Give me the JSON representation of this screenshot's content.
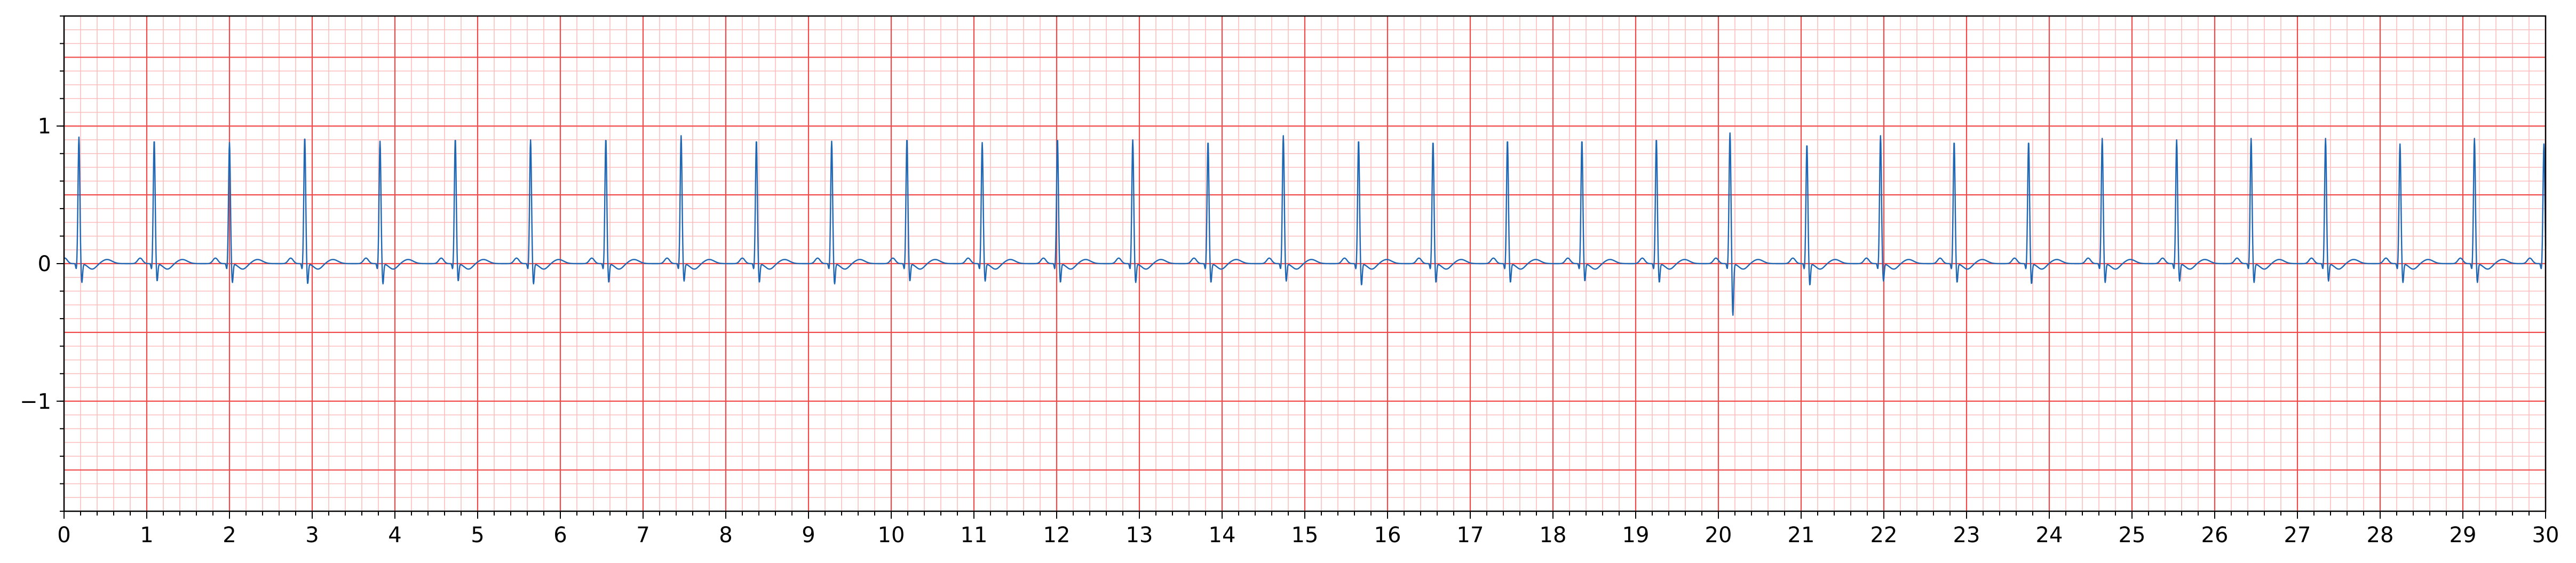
{
  "chart_data": {
    "type": "line",
    "title": "",
    "xlabel": "",
    "ylabel": "",
    "xlim": [
      0,
      30
    ],
    "ylim": [
      -1.8,
      1.8
    ],
    "x_ticks": [
      "0",
      "1",
      "2",
      "3",
      "4",
      "5",
      "6",
      "7",
      "8",
      "9",
      "10",
      "11",
      "12",
      "13",
      "14",
      "15",
      "16",
      "17",
      "18",
      "19",
      "20",
      "21",
      "22",
      "23",
      "24",
      "25",
      "26",
      "27",
      "28",
      "29",
      "30"
    ],
    "y_ticks": [
      {
        "value": 1,
        "label": "1"
      },
      {
        "value": 0,
        "label": "0"
      },
      {
        "value": -1,
        "label": "−1"
      }
    ],
    "grid": {
      "major_x_step": 1,
      "major_y_step": 0.5,
      "minor_x_step": 0.2,
      "minor_y_step": 0.1,
      "major_color": "#f04a4a",
      "minor_color": "#fbbcbc"
    },
    "series": [
      {
        "color": "#1f66b3",
        "baseline": 0.0,
        "beats": [
          {
            "t": 0.18,
            "r": 0.92,
            "s": -0.14
          },
          {
            "t": 1.09,
            "r": 0.9,
            "s": -0.13
          },
          {
            "t": 2.0,
            "r": 0.88,
            "s": -0.14
          },
          {
            "t": 2.91,
            "r": 0.92,
            "s": -0.15
          },
          {
            "t": 3.82,
            "r": 0.89,
            "s": -0.15
          },
          {
            "t": 4.73,
            "r": 0.91,
            "s": -0.13
          },
          {
            "t": 5.64,
            "r": 0.9,
            "s": -0.15
          },
          {
            "t": 6.55,
            "r": 0.91,
            "s": -0.14
          },
          {
            "t": 7.46,
            "r": 0.93,
            "s": -0.13
          },
          {
            "t": 8.37,
            "r": 0.9,
            "s": -0.14
          },
          {
            "t": 9.28,
            "r": 0.89,
            "s": -0.15
          },
          {
            "t": 10.19,
            "r": 0.91,
            "s": -0.13
          },
          {
            "t": 11.1,
            "r": 0.88,
            "s": -0.13
          },
          {
            "t": 12.01,
            "r": 0.91,
            "s": -0.14
          },
          {
            "t": 12.92,
            "r": 0.9,
            "s": -0.14
          },
          {
            "t": 13.83,
            "r": 0.89,
            "s": -0.14
          },
          {
            "t": 14.74,
            "r": 0.93,
            "s": -0.13
          },
          {
            "t": 15.65,
            "r": 0.9,
            "s": -0.16
          },
          {
            "t": 16.55,
            "r": 0.89,
            "s": -0.14
          },
          {
            "t": 17.45,
            "r": 0.9,
            "s": -0.14
          },
          {
            "t": 18.35,
            "r": 0.9,
            "s": -0.13
          },
          {
            "t": 19.25,
            "r": 0.91,
            "s": -0.14
          },
          {
            "t": 20.14,
            "r": 0.95,
            "s": -0.38
          },
          {
            "t": 21.07,
            "r": 0.87,
            "s": -0.16
          },
          {
            "t": 21.96,
            "r": 0.93,
            "s": -0.13
          },
          {
            "t": 22.85,
            "r": 0.89,
            "s": -0.14
          },
          {
            "t": 23.75,
            "r": 0.89,
            "s": -0.15
          },
          {
            "t": 24.64,
            "r": 0.91,
            "s": -0.14
          },
          {
            "t": 25.54,
            "r": 0.9,
            "s": -0.13
          },
          {
            "t": 26.44,
            "r": 0.91,
            "s": -0.14
          },
          {
            "t": 27.34,
            "r": 0.91,
            "s": -0.13
          },
          {
            "t": 28.24,
            "r": 0.87,
            "s": -0.14
          },
          {
            "t": 29.14,
            "r": 0.91,
            "s": -0.14
          },
          {
            "t": 29.98,
            "r": 0.87,
            "s": -0.15
          }
        ]
      }
    ]
  }
}
